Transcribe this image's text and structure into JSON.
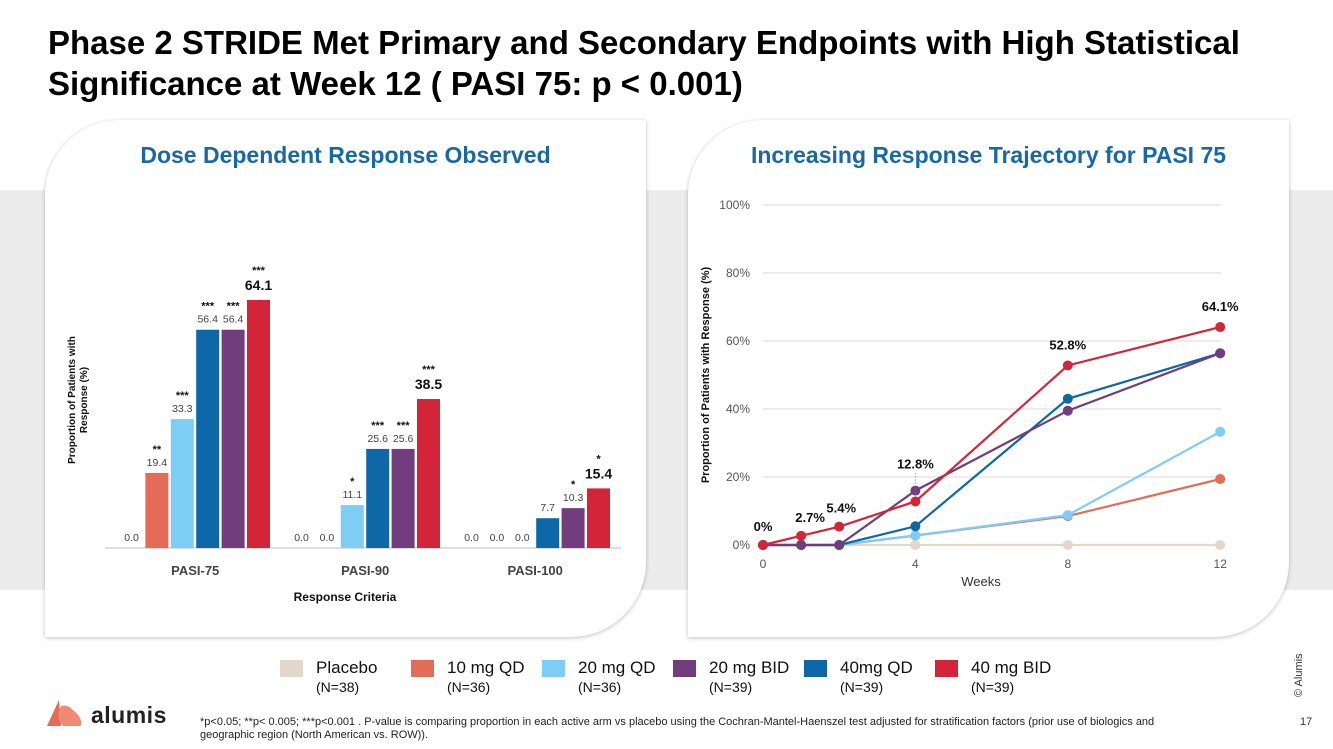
{
  "slide": {
    "title": "Phase 2 STRIDE Met Primary and Secondary Endpoints with High Statistical Significance at Week 12 ( PASI 75: p < 0.001)",
    "page_number": "17",
    "copyright": "© Alumis",
    "logo_text": "alumis",
    "footnote": "*p<0.05; **p< 0.005; ***p<0.001 . P-value is comparing proportion in each active arm vs placebo using the Cochran-Mantel-Haenszel test adjusted for stratification factors (prior use of biologics and geographic region (North American vs. ROW))."
  },
  "legend": [
    {
      "name": "Placebo",
      "n": "(N=38)",
      "color": "#e2d7c9"
    },
    {
      "name": "10 mg QD",
      "n": "(N=36)",
      "color": "#e46b55"
    },
    {
      "name": "20 mg QD",
      "n": "(N=36)",
      "color": "#7dcdf5"
    },
    {
      "name": "20 mg BID",
      "n": "(N=39)",
      "color": "#713d7c"
    },
    {
      "name": "40mg QD",
      "n": "(N=39)",
      "color": "#0e68a8"
    },
    {
      "name": "40 mg BID",
      "n": "(N=39)",
      "color": "#d42538"
    }
  ],
  "chart_data": [
    {
      "type": "bar",
      "title": "Dose Dependent Response Observed",
      "xlabel": "Response Criteria",
      "ylabel": "Proportion of Patients with Response (%)",
      "ylim": [
        0,
        70
      ],
      "categories": [
        "PASI-75",
        "PASI-90",
        "PASI-100"
      ],
      "series": [
        {
          "name": "Placebo",
          "color": "#e2d7c9",
          "values": [
            0.0,
            0.0,
            0.0
          ],
          "labels": [
            "0.0",
            "0.0",
            "0.0"
          ],
          "sig": [
            "",
            "",
            ""
          ]
        },
        {
          "name": "10 mg QD",
          "color": "#e46b55",
          "values": [
            19.4,
            0.0,
            0.0
          ],
          "labels": [
            "19.4",
            "0.0",
            "0.0"
          ],
          "sig": [
            "**",
            "",
            ""
          ]
        },
        {
          "name": "20 mg QD",
          "color": "#7dcdf5",
          "values": [
            33.3,
            11.1,
            0.0
          ],
          "labels": [
            "33.3",
            "11.1",
            "0.0"
          ],
          "sig": [
            "***",
            "*",
            ""
          ]
        },
        {
          "name": "40mg QD",
          "color": "#0e68a8",
          "values": [
            56.4,
            25.6,
            7.7
          ],
          "labels": [
            "56.4",
            "25.6",
            "7.7"
          ],
          "sig": [
            "***",
            "***",
            ""
          ]
        },
        {
          "name": "20 mg BID",
          "color": "#713d7c",
          "values": [
            56.4,
            25.6,
            10.3
          ],
          "labels": [
            "56.4",
            "25.6",
            "10.3"
          ],
          "sig": [
            "***",
            "***",
            "*"
          ]
        },
        {
          "name": "40 mg BID",
          "color": "#d42538",
          "values": [
            64.1,
            38.5,
            15.4
          ],
          "labels": [
            "64.1",
            "38.5",
            "15.4"
          ],
          "sig": [
            "***",
            "***",
            "*"
          ],
          "emphasis": true
        }
      ],
      "grid": false,
      "legend": "bottom"
    },
    {
      "type": "line",
      "title": "Increasing Response Trajectory for PASI 75",
      "xlabel": "Weeks",
      "ylabel": "Proportion of Patients with Response (%)",
      "x": [
        0,
        1,
        2,
        4,
        8,
        12
      ],
      "xticks": [
        0,
        4,
        8,
        12
      ],
      "ylim": [
        0,
        100
      ],
      "yticks": [
        "0%",
        "20%",
        "40%",
        "60%",
        "80%",
        "100%"
      ],
      "grid": true,
      "series": [
        {
          "name": "Placebo",
          "color": "#e2d7c9",
          "values": [
            0,
            0,
            0,
            0,
            0,
            0
          ]
        },
        {
          "name": "10 mg QD",
          "color": "#e46b55",
          "values": [
            0,
            0,
            0,
            2.8,
            8.5,
            19.4
          ]
        },
        {
          "name": "20 mg QD",
          "color": "#7dcdf5",
          "values": [
            0,
            0,
            0,
            2.8,
            8.8,
            33.3
          ]
        },
        {
          "name": "40mg QD",
          "color": "#0e68a8",
          "values": [
            0,
            0,
            0,
            5.5,
            43.0,
            56.4
          ]
        },
        {
          "name": "20 mg BID",
          "color": "#713d7c",
          "values": [
            0,
            0,
            0,
            16.0,
            39.5,
            56.4
          ]
        },
        {
          "name": "40 mg BID",
          "color": "#d42538",
          "values": [
            0,
            2.7,
            5.4,
            12.8,
            52.8,
            64.1
          ]
        }
      ],
      "annotations": [
        {
          "x": 0,
          "y": 0,
          "text": "0%"
        },
        {
          "x": 1,
          "y": 2.7,
          "text": "2.7%"
        },
        {
          "x": 2,
          "y": 5.4,
          "text": "5.4%"
        },
        {
          "x": 4,
          "y": 12.8,
          "text": "12.8%"
        },
        {
          "x": 8,
          "y": 52.8,
          "text": "52.8%"
        },
        {
          "x": 12,
          "y": 64.1,
          "text": "64.1%"
        }
      ],
      "legend": "bottom"
    }
  ]
}
